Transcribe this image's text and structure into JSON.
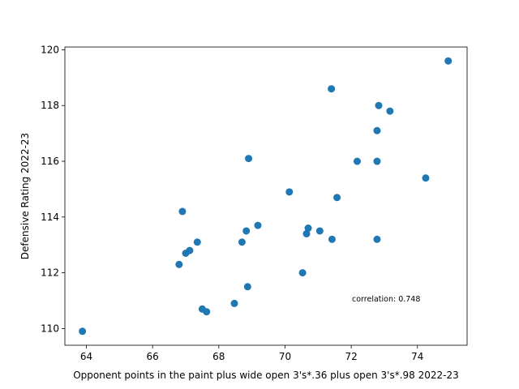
{
  "chart_data": {
    "type": "scatter",
    "xlabel": "Opponent points in the paint plus wide open 3's*.36 plus open 3's*.98 2022-23",
    "ylabel": "Defensive Rating 2022-23",
    "xlim": [
      63.35,
      75.5
    ],
    "ylim": [
      109.4,
      120.1
    ],
    "xticks": [
      64,
      66,
      68,
      70,
      72,
      74
    ],
    "yticks": [
      110,
      112,
      114,
      116,
      118,
      120
    ],
    "grid": false,
    "marker_color": "#1f77b4",
    "annotation": "correlation: 0.748",
    "points": [
      {
        "x": 63.88,
        "y": 109.9
      },
      {
        "x": 66.8,
        "y": 112.3
      },
      {
        "x": 66.9,
        "y": 114.2
      },
      {
        "x": 67.0,
        "y": 112.7
      },
      {
        "x": 67.12,
        "y": 112.8
      },
      {
        "x": 67.35,
        "y": 113.1
      },
      {
        "x": 67.5,
        "y": 110.7
      },
      {
        "x": 67.63,
        "y": 110.6
      },
      {
        "x": 68.47,
        "y": 110.9
      },
      {
        "x": 68.7,
        "y": 113.1
      },
      {
        "x": 68.83,
        "y": 113.5
      },
      {
        "x": 68.87,
        "y": 111.5
      },
      {
        "x": 68.9,
        "y": 116.1
      },
      {
        "x": 69.18,
        "y": 113.7
      },
      {
        "x": 70.13,
        "y": 114.9
      },
      {
        "x": 70.53,
        "y": 112.0
      },
      {
        "x": 70.65,
        "y": 113.4
      },
      {
        "x": 70.7,
        "y": 113.6
      },
      {
        "x": 71.05,
        "y": 113.5
      },
      {
        "x": 71.4,
        "y": 118.6
      },
      {
        "x": 71.42,
        "y": 113.2
      },
      {
        "x": 71.57,
        "y": 114.7
      },
      {
        "x": 72.18,
        "y": 116.0
      },
      {
        "x": 72.78,
        "y": 117.1
      },
      {
        "x": 72.78,
        "y": 116.0
      },
      {
        "x": 72.78,
        "y": 113.2
      },
      {
        "x": 72.83,
        "y": 118.0
      },
      {
        "x": 73.17,
        "y": 117.8
      },
      {
        "x": 74.25,
        "y": 115.4
      },
      {
        "x": 74.93,
        "y": 119.6
      }
    ]
  }
}
